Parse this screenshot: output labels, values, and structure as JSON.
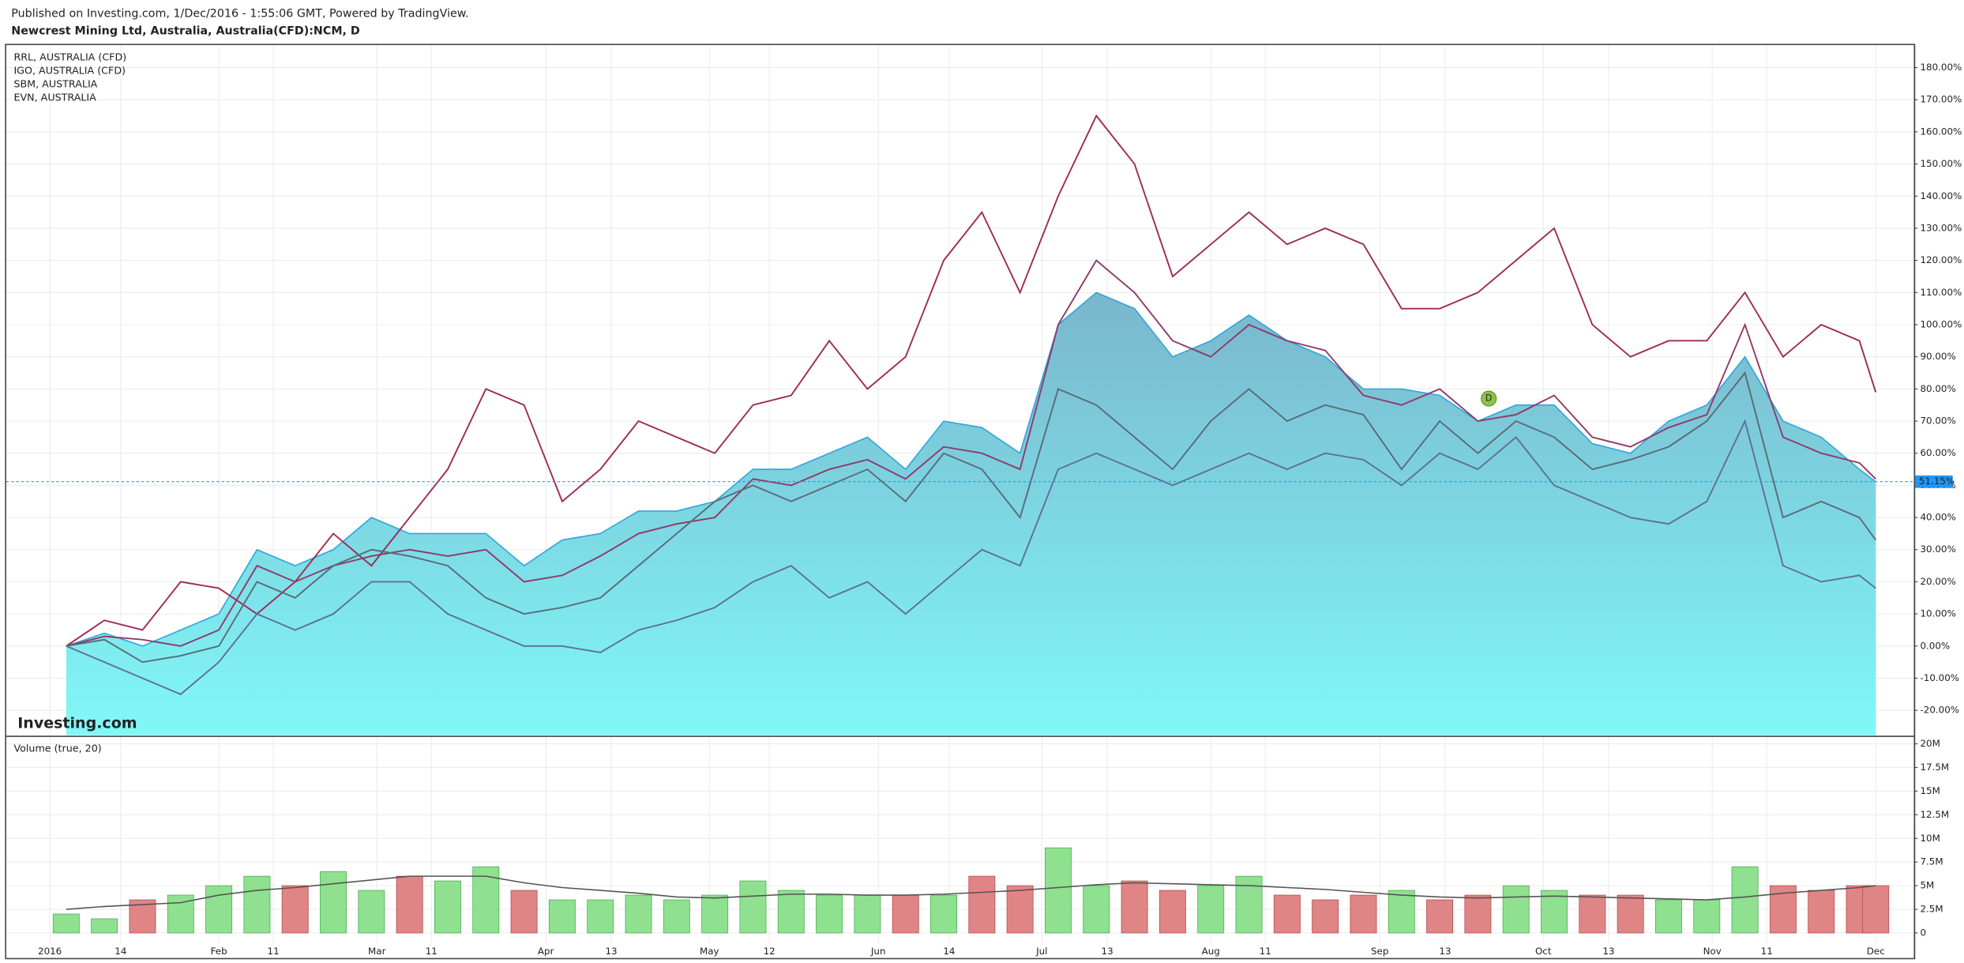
{
  "header": {
    "line1": "Published on Investing.com, 1/Dec/2016 - 1:55:06 GMT, Powered by TradingView.",
    "line2": "Newcrest Mining Ltd, Australia, Australia(CFD):NCM, D",
    "watermark": "Investing.com"
  },
  "chart_data": [
    {
      "type": "area",
      "x": [
        "2016-01-04",
        "2016-01-11",
        "2016-01-18",
        "2016-01-25",
        "2016-02-01",
        "2016-02-08",
        "2016-02-15",
        "2016-02-22",
        "2016-02-29",
        "2016-03-07",
        "2016-03-14",
        "2016-03-21",
        "2016-03-28",
        "2016-04-04",
        "2016-04-11",
        "2016-04-18",
        "2016-04-25",
        "2016-05-02",
        "2016-05-09",
        "2016-05-16",
        "2016-05-23",
        "2016-05-30",
        "2016-06-06",
        "2016-06-13",
        "2016-06-20",
        "2016-06-27",
        "2016-07-04",
        "2016-07-11",
        "2016-07-18",
        "2016-07-25",
        "2016-08-01",
        "2016-08-08",
        "2016-08-15",
        "2016-08-22",
        "2016-08-29",
        "2016-09-05",
        "2016-09-12",
        "2016-09-19",
        "2016-09-26",
        "2016-10-03",
        "2016-10-10",
        "2016-10-17",
        "2016-10-24",
        "2016-10-31",
        "2016-11-07",
        "2016-11-14",
        "2016-11-21",
        "2016-11-28",
        "2016-12-01"
      ],
      "values": [
        0,
        4,
        0,
        5,
        10,
        30,
        25,
        30,
        40,
        35,
        35,
        35,
        25,
        33,
        35,
        42,
        42,
        45,
        55,
        55,
        60,
        65,
        55,
        70,
        68,
        60,
        100,
        110,
        105,
        90,
        95,
        103,
        95,
        90,
        80,
        80,
        78,
        70,
        75,
        75,
        63,
        60,
        70,
        75,
        90,
        70,
        65,
        55,
        51.15
      ],
      "color": "#2fa4dc",
      "series": [
        {
          "name": "RRL, AUSTRALIA (CFD)",
          "color": "#9e2a55",
          "values": [
            0,
            8,
            5,
            20,
            18,
            10,
            20,
            35,
            25,
            40,
            55,
            80,
            75,
            45,
            55,
            70,
            65,
            60,
            75,
            78,
            95,
            80,
            90,
            120,
            135,
            110,
            140,
            165,
            150,
            115,
            125,
            135,
            125,
            130,
            125,
            105,
            105,
            110,
            120,
            130,
            100,
            90,
            95,
            95,
            110,
            90,
            100,
            95,
            79
          ]
        },
        {
          "name": "IGO, AUSTRALIA (CFD)",
          "color": "#8f3a6a",
          "values": [
            0,
            3,
            2,
            0,
            5,
            25,
            20,
            25,
            28,
            30,
            28,
            30,
            20,
            22,
            28,
            35,
            38,
            40,
            52,
            50,
            55,
            58,
            52,
            62,
            60,
            55,
            100,
            120,
            110,
            95,
            90,
            100,
            95,
            92,
            78,
            75,
            80,
            70,
            72,
            78,
            65,
            62,
            68,
            72,
            100,
            65,
            60,
            57,
            52
          ]
        },
        {
          "name": "SBM, AUSTRALIA",
          "color": "#5a6a78",
          "values": [
            0,
            2,
            -5,
            -3,
            0,
            20,
            15,
            25,
            30,
            28,
            25,
            15,
            10,
            12,
            15,
            25,
            35,
            45,
            50,
            45,
            50,
            55,
            45,
            60,
            55,
            40,
            80,
            75,
            65,
            55,
            70,
            80,
            70,
            75,
            72,
            55,
            70,
            60,
            70,
            65,
            55,
            58,
            62,
            70,
            85,
            40,
            45,
            40,
            33
          ]
        },
        {
          "name": "EVN, AUSTRALIA",
          "color": "#5f6f95",
          "values": [
            0,
            -5,
            -10,
            -15,
            -5,
            10,
            5,
            10,
            20,
            20,
            10,
            5,
            0,
            0,
            -2,
            5,
            8,
            12,
            20,
            25,
            15,
            20,
            10,
            20,
            30,
            25,
            55,
            60,
            55,
            50,
            55,
            60,
            55,
            60,
            58,
            50,
            60,
            55,
            65,
            50,
            45,
            40,
            38,
            45,
            70,
            25,
            20,
            22,
            18
          ]
        }
      ],
      "xlim": [
        "2015-12-24",
        "2016-12-08"
      ],
      "xticks": [
        {
          "value": "2016-01-01",
          "label": "2016"
        },
        {
          "value": "2016-01-14",
          "label": "14"
        },
        {
          "value": "2016-02-01",
          "label": "Feb"
        },
        {
          "value": "2016-02-11",
          "label": "11"
        },
        {
          "value": "2016-03-01",
          "label": "Mar"
        },
        {
          "value": "2016-03-11",
          "label": "11"
        },
        {
          "value": "2016-04-01",
          "label": "Apr"
        },
        {
          "value": "2016-04-13",
          "label": "13"
        },
        {
          "value": "2016-05-01",
          "label": "May"
        },
        {
          "value": "2016-05-12",
          "label": "12"
        },
        {
          "value": "2016-06-01",
          "label": "Jun"
        },
        {
          "value": "2016-06-14",
          "label": "14"
        },
        {
          "value": "2016-07-01",
          "label": "Jul"
        },
        {
          "value": "2016-07-13",
          "label": "13"
        },
        {
          "value": "2016-08-01",
          "label": "Aug"
        },
        {
          "value": "2016-08-11",
          "label": "11"
        },
        {
          "value": "2016-09-01",
          "label": "Sep"
        },
        {
          "value": "2016-09-13",
          "label": "13"
        },
        {
          "value": "2016-10-01",
          "label": "Oct"
        },
        {
          "value": "2016-10-13",
          "label": "13"
        },
        {
          "value": "2016-11-01",
          "label": "Nov"
        },
        {
          "value": "2016-11-11",
          "label": "11"
        },
        {
          "value": "2016-12-01",
          "label": "Dec"
        }
      ],
      "ylim": [
        -27.7,
        187
      ],
      "yticks": [
        {
          "value": -20,
          "label": "-20.00%"
        },
        {
          "value": -10,
          "label": "-10.00%"
        },
        {
          "value": 0,
          "label": "0.00%"
        },
        {
          "value": 10,
          "label": "10.00%"
        },
        {
          "value": 20,
          "label": "20.00%"
        },
        {
          "value": 30,
          "label": "30.00%"
        },
        {
          "value": 40,
          "label": "40.00%"
        },
        {
          "value": 50,
          "label": "50.00%"
        },
        {
          "value": 60,
          "label": "60.00%"
        },
        {
          "value": 70,
          "label": "70.00%"
        },
        {
          "value": 80,
          "label": "80.00%"
        },
        {
          "value": 90,
          "label": "90.00%"
        },
        {
          "value": 100,
          "label": "100.00%"
        },
        {
          "value": 110,
          "label": "110.00%"
        },
        {
          "value": 120,
          "label": "120.00%"
        },
        {
          "value": 130,
          "label": "130.00%"
        },
        {
          "value": 140,
          "label": "140.00%"
        },
        {
          "value": 150,
          "label": "150.00%"
        },
        {
          "value": 160,
          "label": "160.00%"
        },
        {
          "value": 170,
          "label": "170.00%"
        },
        {
          "value": 180,
          "label": "180.00%"
        }
      ],
      "grid": true,
      "last": {
        "value": 51.15,
        "label": "51.15%"
      },
      "annotation": {
        "x": "2016-09-21",
        "y": 77,
        "label": "D"
      }
    },
    {
      "type": "bar",
      "title": "Volume (true, 20)",
      "values": [
        2000000,
        1500000,
        3500000,
        4000000,
        5000000,
        6000000,
        5000000,
        6500000,
        4500000,
        6000000,
        5500000,
        7000000,
        4500000,
        3500000,
        3500000,
        4000000,
        3500000,
        4000000,
        5500000,
        4500000,
        4000000,
        4000000,
        4000000,
        4000000,
        6000000,
        5000000,
        9000000,
        5000000,
        5500000,
        4500000,
        5000000,
        6000000,
        4000000,
        3500000,
        4000000,
        4500000,
        3500000,
        4000000,
        5000000,
        4500000,
        4000000,
        4000000,
        3500000,
        3500000,
        7000000,
        5000000,
        4500000,
        5000000,
        5000000
      ],
      "ma_values": [
        2500000,
        2800000,
        3000000,
        3200000,
        4000000,
        4500000,
        4800000,
        5200000,
        5600000,
        6000000,
        6000000,
        6000000,
        5300000,
        4800000,
        4500000,
        4200000,
        3800000,
        3700000,
        3900000,
        4100000,
        4100000,
        4000000,
        4000000,
        4100000,
        4300000,
        4500000,
        4800000,
        5100000,
        5300000,
        5200000,
        5100000,
        5000000,
        4800000,
        4600000,
        4300000,
        4000000,
        3800000,
        3700000,
        3800000,
        3900000,
        3800000,
        3700000,
        3600000,
        3500000,
        3800000,
        4200000,
        4500000,
        4800000,
        5000000
      ],
      "up_color": "#8fe08f",
      "down_color": "#e08585",
      "ma_color": "#555555",
      "ylim": [
        -1060000,
        20660000
      ],
      "yticks": [
        0,
        {
          "value": 2500000,
          "label": "2.5M"
        },
        {
          "value": 5000000,
          "label": "5M"
        },
        {
          "value": 7500000,
          "label": "7.5M"
        },
        {
          "value": 10000000,
          "label": "10M"
        },
        {
          "value": 12500000,
          "label": "12.5M"
        },
        {
          "value": 15000000,
          "label": "15M"
        },
        {
          "value": 17500000,
          "label": "17.5M"
        },
        {
          "value": 20000000,
          "label": "20M"
        }
      ]
    }
  ]
}
